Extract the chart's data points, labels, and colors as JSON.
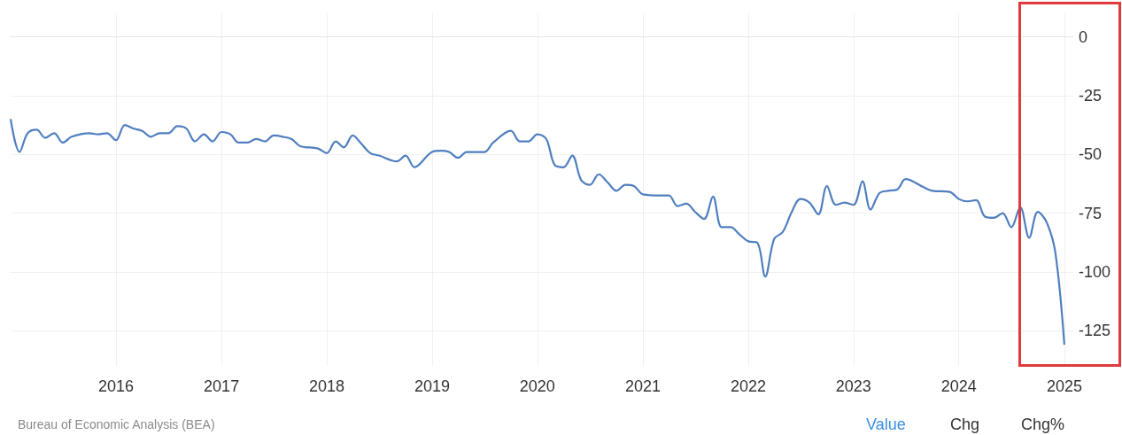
{
  "chart_data": {
    "type": "line",
    "x": [
      "2015-01",
      "2015-02",
      "2015-03",
      "2015-04",
      "2015-05",
      "2015-06",
      "2015-07",
      "2015-08",
      "2015-10",
      "2015-11",
      "2015-12",
      "2016-01",
      "2016-02",
      "2016-03",
      "2016-04",
      "2016-05",
      "2016-06",
      "2016-07",
      "2016-08",
      "2016-09",
      "2016-10",
      "2016-11",
      "2016-12",
      "2017-01",
      "2017-02",
      "2017-03",
      "2017-04",
      "2017-05",
      "2017-06",
      "2017-07",
      "2017-08",
      "2017-09",
      "2017-10",
      "2017-12",
      "2018-01",
      "2018-02",
      "2018-03",
      "2018-04",
      "2018-05",
      "2018-06",
      "2018-07",
      "2018-09",
      "2018-10",
      "2018-11",
      "2019-01",
      "2019-02",
      "2019-03",
      "2019-04",
      "2019-05",
      "2019-07",
      "2019-08",
      "2019-10",
      "2019-11",
      "2019-12",
      "2020-01",
      "2020-02",
      "2020-03",
      "2020-04",
      "2020-05",
      "2020-06",
      "2020-07",
      "2020-08",
      "2020-09",
      "2020-10",
      "2020-11",
      "2020-12",
      "2021-01",
      "2021-03",
      "2021-04",
      "2021-05",
      "2021-06",
      "2021-07",
      "2021-08",
      "2021-09",
      "2021-10",
      "2021-11",
      "2021-12",
      "2022-01",
      "2022-02",
      "2022-03",
      "2022-04",
      "2022-05",
      "2022-06",
      "2022-07",
      "2022-08",
      "2022-09",
      "2022-10",
      "2022-11",
      "2022-12",
      "2023-01",
      "2023-02",
      "2023-03",
      "2023-04",
      "2023-05",
      "2023-06",
      "2023-07",
      "2023-09",
      "2023-10",
      "2023-12",
      "2024-01",
      "2024-02",
      "2024-03",
      "2024-04",
      "2024-05",
      "2024-06",
      "2024-07",
      "2024-08",
      "2024-09",
      "2024-10",
      "2024-11",
      "2024-12",
      "2025-01"
    ],
    "series": [
      {
        "color": "#4f7fbf",
        "values": [
          -35,
          -49,
          -41,
          -39.5,
          -43,
          -41,
          -45,
          -42.5,
          -41,
          -41.5,
          -41,
          -44,
          -37.5,
          -39,
          -40,
          -42.5,
          -41,
          -41,
          -38,
          -39,
          -44.5,
          -41.5,
          -44.5,
          -40.5,
          -41.5,
          -45,
          -45,
          -43.5,
          -44.5,
          -42,
          -42.5,
          -43.5,
          -46.5,
          -47.5,
          -49.5,
          -44.5,
          -47,
          -42,
          -45.5,
          -49.5,
          -50.5,
          -53,
          -50.5,
          -55.5,
          -49,
          -48.5,
          -49,
          -51.5,
          -49,
          -49,
          -45,
          -40,
          -44.5,
          -44.5,
          -41.5,
          -43.5,
          -54.5,
          -55.5,
          -50.5,
          -61,
          -63,
          -58.5,
          -62,
          -65.5,
          -63,
          -63.5,
          -67,
          -67.5,
          -67.5,
          -72,
          -71,
          -74.5,
          -77.5,
          -68,
          -81,
          -81,
          -84,
          -87,
          -87.5,
          -102,
          -86,
          -83,
          -74.5,
          -69,
          -70.5,
          -75.5,
          -63.5,
          -71.5,
          -70.5,
          -71.5,
          -61.5,
          -73.5,
          -66.5,
          -65.5,
          -65,
          -60.5,
          -64,
          -65.5,
          -66,
          -69,
          -70,
          -69.5,
          -76.5,
          -77,
          -75,
          -81,
          -72.5,
          -85.5,
          -74.5,
          -79,
          -92,
          -131
        ]
      }
    ],
    "xlim": [
      "2015-01",
      "2025-02"
    ],
    "xticks": [
      "2016",
      "2017",
      "2018",
      "2019",
      "2020",
      "2021",
      "2022",
      "2023",
      "2024",
      "2025"
    ],
    "ylim": [
      -140,
      10
    ],
    "yticks": [
      0,
      -25,
      -50,
      -75,
      -100,
      -125
    ],
    "grid": true,
    "annotations": [
      "Bureau of Economic Analysis (BEA)",
      "Value",
      "Chg",
      "Chg%"
    ]
  }
}
